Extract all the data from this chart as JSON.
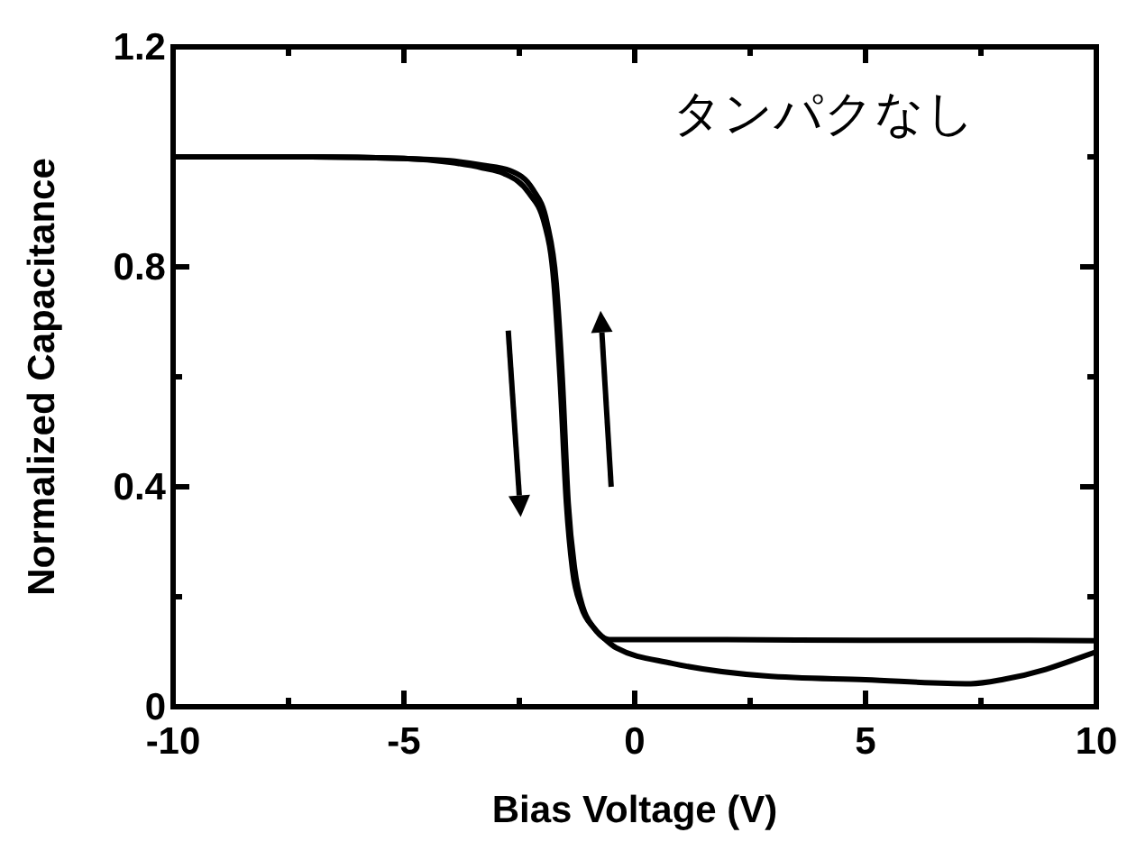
{
  "chart_data": {
    "type": "line",
    "xlabel": "Bias Voltage (V)",
    "ylabel": "Normalized Capacitance",
    "annotations": [
      "タンパクなし"
    ],
    "xlim": [
      -10,
      10
    ],
    "ylim": [
      0,
      1.2
    ],
    "xticks": [
      -10,
      {
        "value": -7.5,
        "label": null
      },
      -5,
      {
        "value": -2.5,
        "label": null
      },
      0,
      {
        "value": 2.5,
        "label": null
      },
      5,
      {
        "value": 7.5,
        "label": null
      },
      10
    ],
    "yticks": [
      0,
      {
        "value": 0.2,
        "label": null
      },
      0.4,
      {
        "value": 0.6,
        "label": null
      },
      0.8,
      {
        "value": 1.0,
        "label": null
      },
      1.2
    ],
    "grid": false,
    "marker": "none",
    "line_style": "solid",
    "series": [
      {
        "color": "#000000",
        "x": [
          -10,
          -7,
          -5,
          -4,
          -3.3,
          -2.84,
          -2.3,
          -1.96,
          -1.75,
          -1.62,
          -1.48,
          -1.35,
          -1.15,
          -0.9,
          -0.67,
          -0.55,
          2,
          5,
          8,
          10
        ],
        "values": [
          1.0,
          1.0,
          0.997,
          0.99,
          0.98,
          0.97,
          0.935,
          0.88,
          0.77,
          0.6,
          0.37,
          0.25,
          0.18,
          0.145,
          0.125,
          0.122,
          0.122,
          0.121,
          0.121,
          0.12
        ]
      },
      {
        "color": "#000000",
        "x": [
          10,
          9.5,
          8.9,
          8,
          7.28,
          5,
          2.83,
          0.81,
          -0.4,
          -0.67,
          -0.9,
          -1.12,
          -1.3,
          -1.44,
          -1.57,
          -1.7,
          -1.9,
          -2.2,
          -2.7,
          -3.3,
          -4,
          -5,
          -7,
          -10
        ],
        "values": [
          0.1,
          0.085,
          0.068,
          0.05,
          0.042,
          0.049,
          0.056,
          0.079,
          0.107,
          0.125,
          0.145,
          0.18,
          0.25,
          0.37,
          0.6,
          0.77,
          0.88,
          0.94,
          0.975,
          0.985,
          0.993,
          0.997,
          1.0,
          1.0
        ]
      }
    ]
  }
}
